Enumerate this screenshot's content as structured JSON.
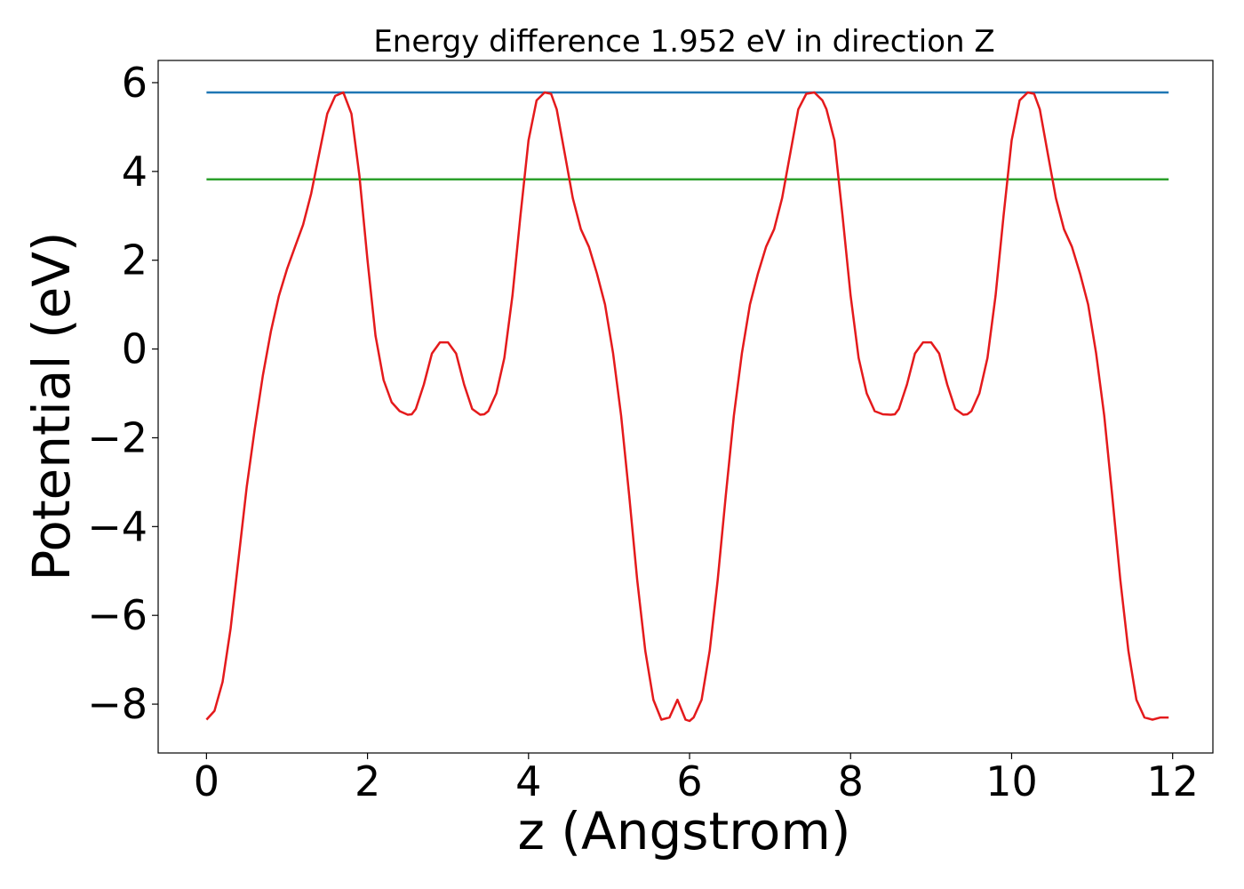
{
  "chart_data": {
    "type": "line",
    "title": "Energy difference 1.952 eV in direction Z",
    "xlabel": "z (Angstrom)",
    "ylabel": "Potential (eV)",
    "xlim": [
      -0.6,
      12.5
    ],
    "ylim": [
      -9.1,
      6.5
    ],
    "xticks": [
      0,
      2,
      4,
      6,
      8,
      10,
      12
    ],
    "xtick_labels": [
      "0",
      "2",
      "4",
      "6",
      "8",
      "10",
      "12"
    ],
    "yticks": [
      6,
      4,
      2,
      0,
      -2,
      -4,
      -6,
      -8
    ],
    "ytick_labels": [
      "6",
      "4",
      "2",
      "0",
      "−2",
      "−4",
      "−6",
      "−8"
    ],
    "grid": false,
    "legend": "none",
    "series": [
      {
        "color": "#1f77b4",
        "x": [
          0,
          11.95
        ],
        "y": [
          5.78,
          5.78
        ]
      },
      {
        "color": "#2ca02c",
        "x": [
          0,
          11.95
        ],
        "y": [
          3.82,
          3.82
        ]
      },
      {
        "color": "#e41a1c",
        "x": [
          0,
          0.1,
          0.2,
          0.3,
          0.4,
          0.5,
          0.6,
          0.7,
          0.8,
          0.9,
          1.0,
          1.1,
          1.2,
          1.3,
          1.4,
          1.5,
          1.6,
          1.7,
          1.8,
          1.9,
          2.0,
          2.1,
          2.2,
          2.3,
          2.4,
          2.5,
          2.55,
          2.6,
          2.7,
          2.8,
          2.9,
          3.0,
          3.1,
          3.2,
          3.3,
          3.4,
          3.45,
          3.5,
          3.6,
          3.7,
          3.8,
          3.9,
          4.0,
          4.1,
          4.2,
          4.28,
          4.35,
          4.45,
          4.55,
          4.65,
          4.75,
          4.85,
          4.95,
          5.05,
          5.15,
          5.25,
          5.35,
          5.45,
          5.55,
          5.65,
          5.75,
          5.85,
          5.95,
          6.0,
          6.05,
          6.15,
          6.25,
          6.35,
          6.45,
          6.55,
          6.65,
          6.75,
          6.85,
          6.95,
          7.05,
          7.15,
          7.25,
          7.35,
          7.45,
          7.55,
          7.65,
          7.7,
          7.8,
          7.9,
          8.0,
          8.1,
          8.2,
          8.3,
          8.4,
          8.5,
          8.55,
          8.6,
          8.7,
          8.8,
          8.9,
          9.0,
          9.1,
          9.2,
          9.3,
          9.4,
          9.45,
          9.5,
          9.6,
          9.7,
          9.8,
          9.9,
          10.0,
          10.1,
          10.2,
          10.28,
          10.35,
          10.45,
          10.55,
          10.65,
          10.75,
          10.85,
          10.95,
          11.05,
          11.15,
          11.25,
          11.35,
          11.45,
          11.55,
          11.65,
          11.75,
          11.85,
          11.95
        ],
        "y": [
          -8.35,
          -8.15,
          -7.5,
          -6.3,
          -4.7,
          -3.1,
          -1.8,
          -0.6,
          0.4,
          1.2,
          1.8,
          2.3,
          2.8,
          3.5,
          4.4,
          5.3,
          5.7,
          5.78,
          5.3,
          3.9,
          2.0,
          0.3,
          -0.7,
          -1.2,
          -1.4,
          -1.48,
          -1.47,
          -1.35,
          -0.8,
          -0.1,
          0.15,
          0.15,
          -0.1,
          -0.8,
          -1.35,
          -1.48,
          -1.47,
          -1.4,
          -1.0,
          -0.2,
          1.2,
          3.0,
          4.7,
          5.6,
          5.78,
          5.75,
          5.4,
          4.4,
          3.4,
          2.7,
          2.3,
          1.7,
          1.0,
          -0.1,
          -1.5,
          -3.3,
          -5.2,
          -6.8,
          -7.9,
          -8.35,
          -8.3,
          -7.9,
          -8.35,
          -8.38,
          -8.3,
          -7.9,
          -6.8,
          -5.2,
          -3.3,
          -1.5,
          -0.1,
          1.0,
          1.7,
          2.3,
          2.7,
          3.4,
          4.4,
          5.4,
          5.75,
          5.78,
          5.6,
          5.4,
          4.7,
          3.0,
          1.2,
          -0.2,
          -1.0,
          -1.4,
          -1.47,
          -1.48,
          -1.47,
          -1.35,
          -0.8,
          -0.1,
          0.15,
          0.15,
          -0.1,
          -0.8,
          -1.35,
          -1.48,
          -1.47,
          -1.4,
          -1.0,
          -0.2,
          1.2,
          3.0,
          4.7,
          5.6,
          5.78,
          5.75,
          5.4,
          4.4,
          3.4,
          2.7,
          2.3,
          1.7,
          1.0,
          -0.1,
          -1.5,
          -3.3,
          -5.2,
          -6.8,
          -7.9,
          -8.3,
          -8.35,
          -8.3,
          -8.3
        ]
      }
    ]
  }
}
